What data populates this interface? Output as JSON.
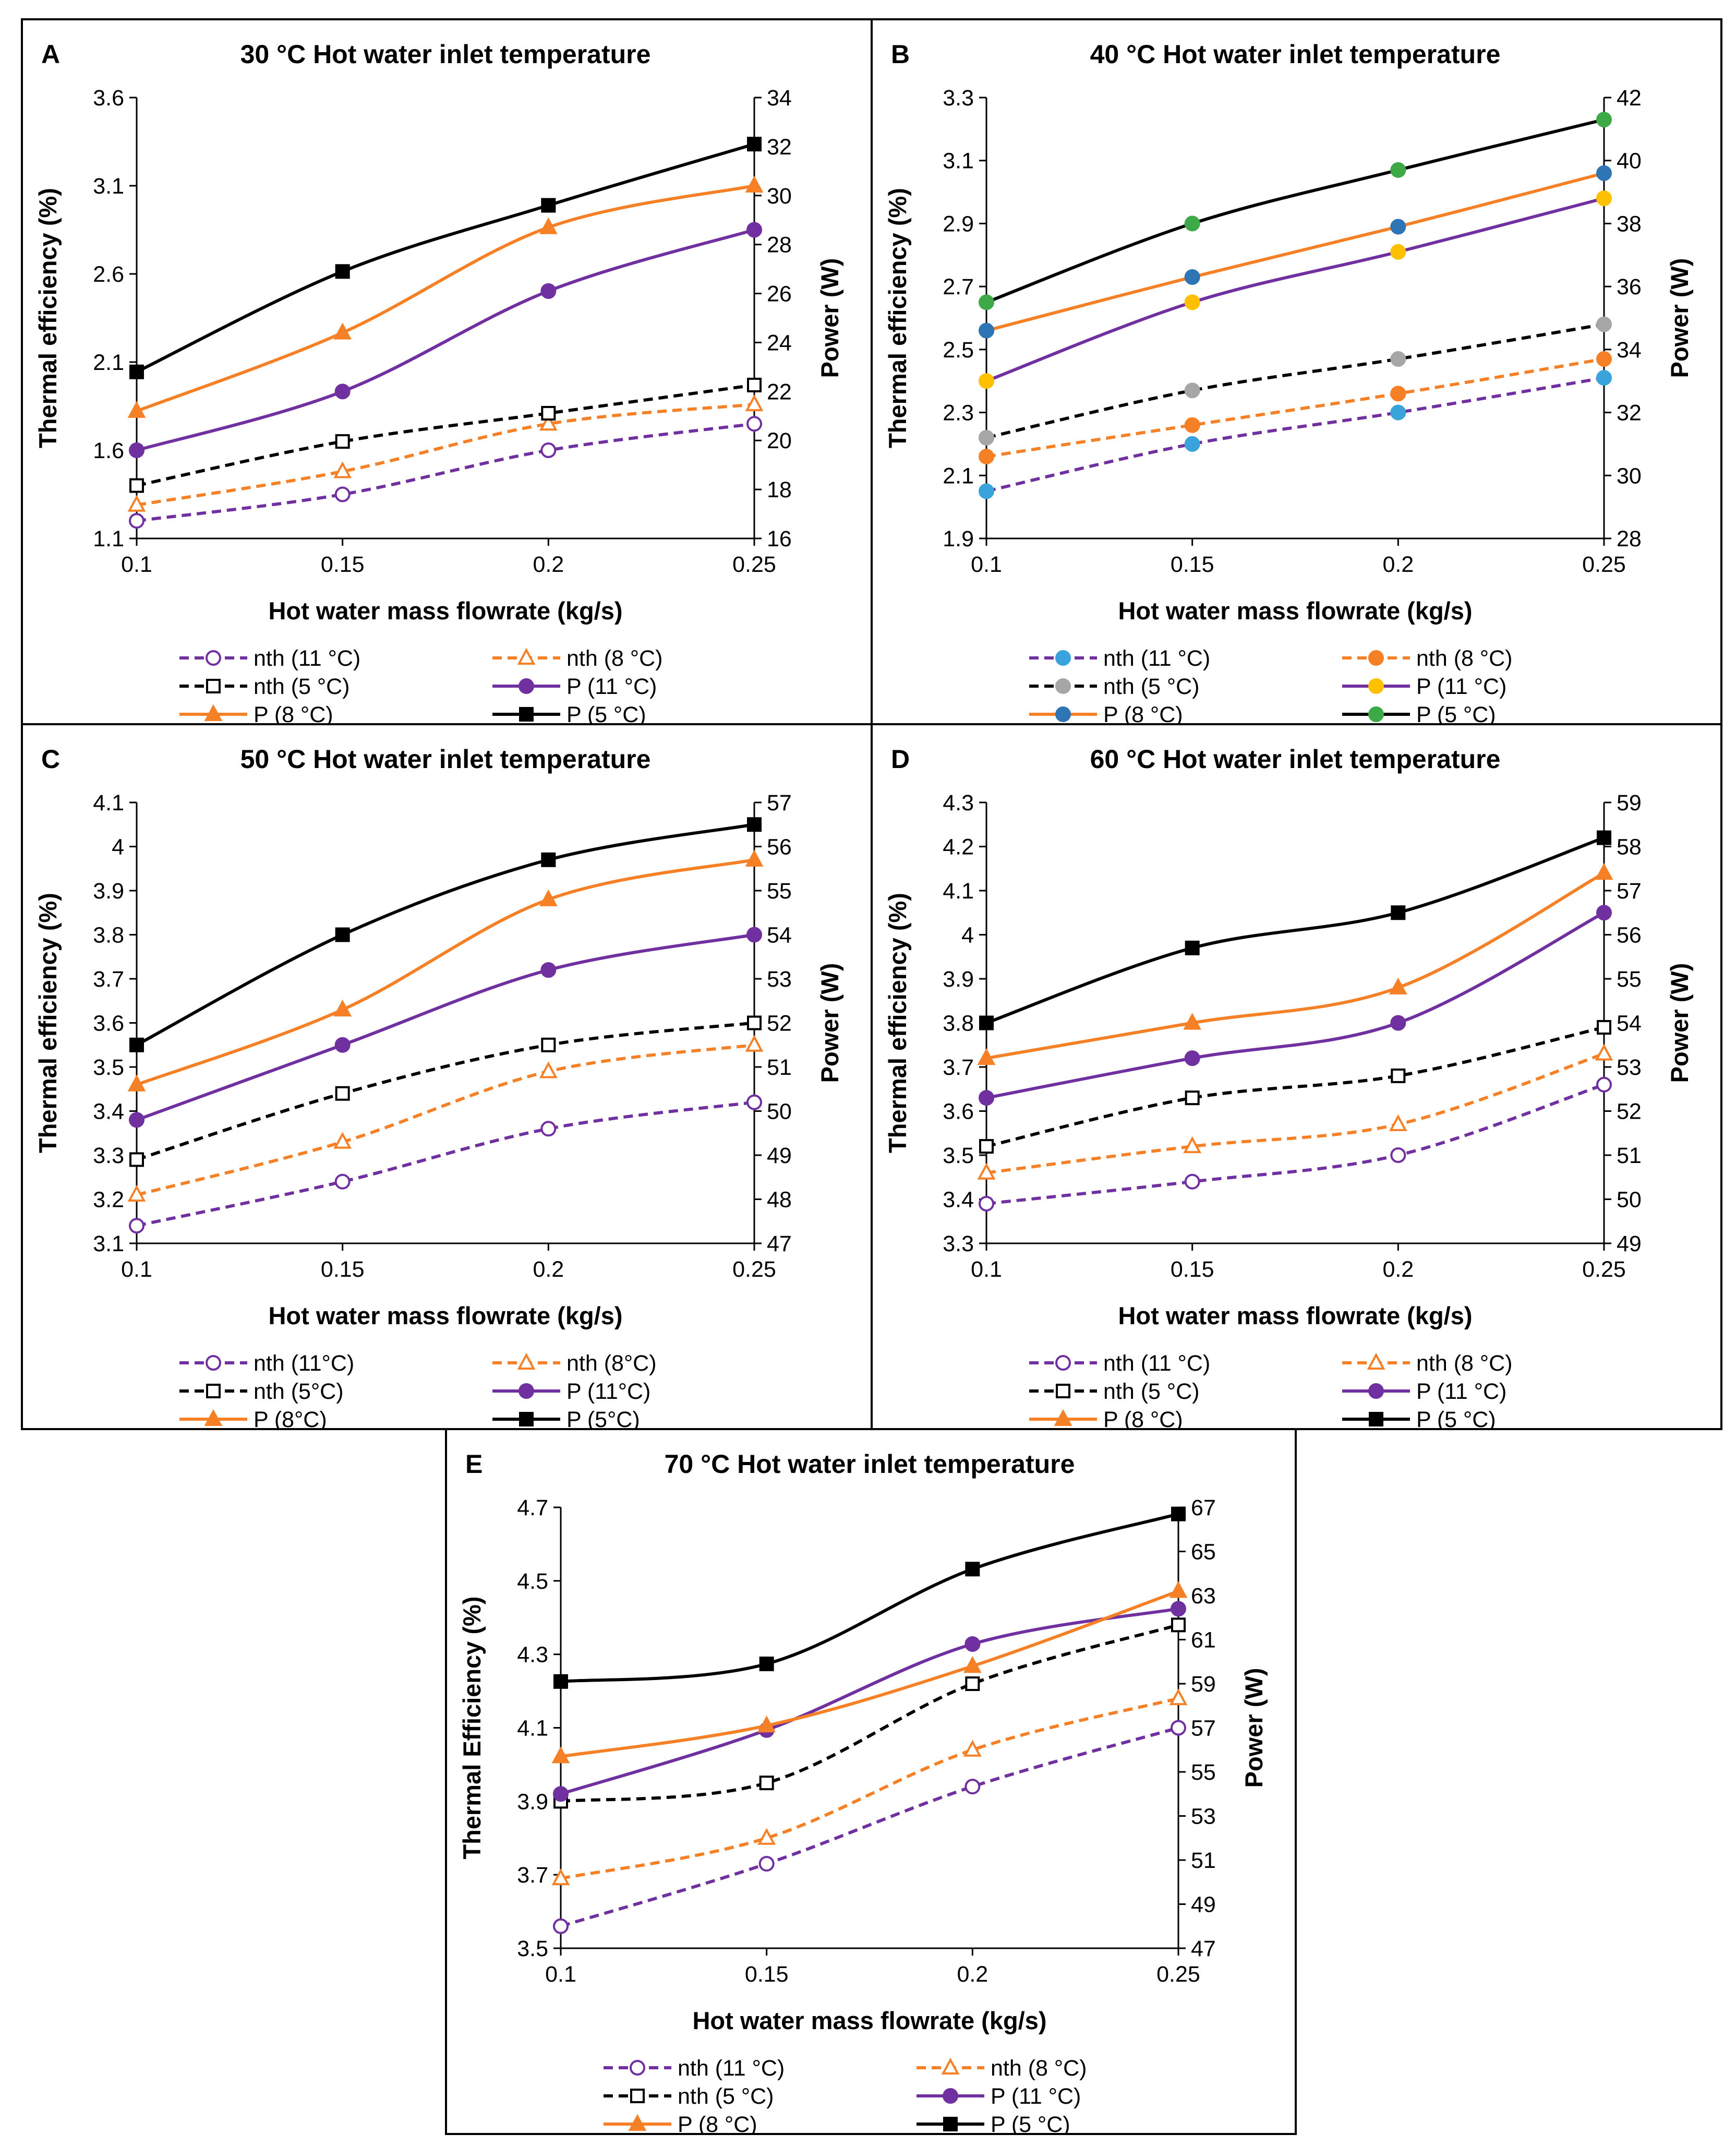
{
  "chart_data": [
    {
      "panel_letter": "A",
      "type": "line",
      "title": "30 °C Hot water inlet temperature",
      "xlabel": "Hot water mass flowrate (kg/s)",
      "ylabel": "Thermal efficiency (%)",
      "y2label": "Power (W)",
      "categories": [
        "0.1",
        "0.15",
        "0.2",
        "0.25"
      ],
      "ylim": [
        1.1,
        3.6
      ],
      "yticks": [
        "1.1",
        "1.6",
        "2.1",
        "2.6",
        "3.1",
        "3.6"
      ],
      "y2lim": [
        16,
        34
      ],
      "y2ticks": [
        "16",
        "18",
        "20",
        "22",
        "24",
        "26",
        "28",
        "30",
        "32",
        "34"
      ],
      "legend_position": "bottom",
      "series": [
        {
          "name": "nth (11 °C)",
          "axis": "left",
          "color": "#7030A0",
          "dash": true,
          "marker": "circle",
          "filled": false,
          "values": [
            1.2,
            1.35,
            1.6,
            1.75
          ]
        },
        {
          "name": "nth (8 °C)",
          "axis": "left",
          "color": "#F58025",
          "dash": true,
          "marker": "triangle",
          "filled": false,
          "values": [
            1.29,
            1.48,
            1.75,
            1.86
          ]
        },
        {
          "name": "nth (5 °C)",
          "axis": "left",
          "color": "#000000",
          "dash": true,
          "marker": "square",
          "filled": false,
          "values": [
            1.4,
            1.65,
            1.81,
            1.97
          ]
        },
        {
          "name": "P (11 °C)",
          "axis": "right",
          "color": "#7030A0",
          "dash": false,
          "marker": "circle",
          "filled": true,
          "values": [
            19.6,
            22.0,
            26.1,
            28.6
          ]
        },
        {
          "name": "P (8 °C)",
          "axis": "right",
          "color": "#F58025",
          "dash": false,
          "marker": "triangle",
          "filled": true,
          "values": [
            21.2,
            24.4,
            28.7,
            30.4
          ]
        },
        {
          "name": "P (5 °C)",
          "axis": "right",
          "color": "#000000",
          "dash": false,
          "marker": "square",
          "filled": true,
          "values": [
            22.8,
            26.9,
            29.6,
            32.1
          ]
        }
      ]
    },
    {
      "panel_letter": "B",
      "type": "line",
      "title": "40 °C Hot water inlet temperature",
      "xlabel": "Hot water mass flowrate (kg/s)",
      "ylabel": "Thermal efficiency (%)",
      "y2label": "Power (W)",
      "categories": [
        "0.1",
        "0.15",
        "0.2",
        "0.25"
      ],
      "ylim": [
        1.9,
        3.3
      ],
      "yticks": [
        "1.9",
        "2.1",
        "2.3",
        "2.5",
        "2.7",
        "2.9",
        "3.1",
        "3.3"
      ],
      "y2lim": [
        28,
        42
      ],
      "y2ticks": [
        "28",
        "30",
        "32",
        "34",
        "36",
        "38",
        "40",
        "42"
      ],
      "legend_position": "bottom",
      "series": [
        {
          "name": "nth (11 °C)",
          "axis": "left",
          "color": "#3AA3DB",
          "line_color": "#7030A0",
          "dash": true,
          "marker": "circle",
          "filled": true,
          "values": [
            2.05,
            2.2,
            2.3,
            2.41
          ]
        },
        {
          "name": "nth (8 °C)",
          "axis": "left",
          "color": "#F58025",
          "line_color": "#F58025",
          "dash": true,
          "marker": "circle",
          "filled": true,
          "values": [
            2.16,
            2.26,
            2.36,
            2.47
          ]
        },
        {
          "name": "nth (5 °C)",
          "axis": "left",
          "color": "#A6A6A6",
          "line_color": "#000000",
          "dash": true,
          "marker": "circle",
          "filled": true,
          "values": [
            2.22,
            2.37,
            2.47,
            2.58
          ]
        },
        {
          "name": "P (11 °C)",
          "axis": "right",
          "color": "#FFC000",
          "line_color": "#7030A0",
          "dash": false,
          "marker": "circle",
          "filled": true,
          "values": [
            33.0,
            35.5,
            37.1,
            38.8
          ]
        },
        {
          "name": "P (8 °C)",
          "axis": "right",
          "color": "#2E75B6",
          "line_color": "#F58025",
          "dash": false,
          "marker": "circle",
          "filled": true,
          "values": [
            34.6,
            36.3,
            37.9,
            39.6
          ]
        },
        {
          "name": "P (5 °C)",
          "axis": "right",
          "color": "#3DAA47",
          "line_color": "#000000",
          "dash": false,
          "marker": "circle",
          "filled": true,
          "values": [
            35.5,
            38.0,
            39.7,
            41.3
          ]
        }
      ]
    },
    {
      "panel_letter": "C",
      "type": "line",
      "title": "50 °C Hot water inlet temperature",
      "xlabel": "Hot water mass flowrate (kg/s)",
      "ylabel": "Thermal efficiency (%)",
      "y2label": "Power (W)",
      "categories": [
        "0.1",
        "0.15",
        "0.2",
        "0.25"
      ],
      "ylim": [
        3.1,
        4.1
      ],
      "yticks": [
        "3.1",
        "3.2",
        "3.3",
        "3.4",
        "3.5",
        "3.6",
        "3.7",
        "3.8",
        "3.9",
        "4",
        "4.1"
      ],
      "y2lim": [
        47,
        57
      ],
      "y2ticks": [
        "47",
        "48",
        "49",
        "50",
        "51",
        "52",
        "53",
        "54",
        "55",
        "56",
        "57"
      ],
      "legend_position": "bottom",
      "series": [
        {
          "name": "nth (11°C)",
          "axis": "left",
          "color": "#7030A0",
          "dash": true,
          "marker": "circle",
          "filled": false,
          "values": [
            3.14,
            3.24,
            3.36,
            3.42
          ]
        },
        {
          "name": "nth (8°C)",
          "axis": "left",
          "color": "#F58025",
          "dash": true,
          "marker": "triangle",
          "filled": false,
          "values": [
            3.21,
            3.33,
            3.49,
            3.55
          ]
        },
        {
          "name": "nth (5°C)",
          "axis": "left",
          "color": "#000000",
          "dash": true,
          "marker": "square",
          "filled": false,
          "values": [
            3.29,
            3.44,
            3.55,
            3.6
          ]
        },
        {
          "name": "P (11°C)",
          "axis": "right",
          "color": "#7030A0",
          "dash": false,
          "marker": "circle",
          "filled": true,
          "values": [
            49.8,
            51.5,
            53.2,
            54.0
          ]
        },
        {
          "name": "P (8°C)",
          "axis": "right",
          "color": "#F58025",
          "dash": false,
          "marker": "triangle",
          "filled": true,
          "values": [
            50.6,
            52.3,
            54.8,
            55.7
          ]
        },
        {
          "name": "P (5°C)",
          "axis": "right",
          "color": "#000000",
          "dash": false,
          "marker": "square",
          "filled": true,
          "values": [
            51.5,
            54.0,
            55.7,
            56.5
          ]
        }
      ]
    },
    {
      "panel_letter": "D",
      "type": "line",
      "title": "60 °C Hot water inlet temperature",
      "xlabel": "Hot water mass flowrate (kg/s)",
      "ylabel": "Thermal efficiency (%)",
      "y2label": "Power (W)",
      "categories": [
        "0.1",
        "0.15",
        "0.2",
        "0.25"
      ],
      "ylim": [
        3.3,
        4.3
      ],
      "yticks": [
        "3.3",
        "3.4",
        "3.5",
        "3.6",
        "3.7",
        "3.8",
        "3.9",
        "4",
        "4.1",
        "4.2",
        "4.3"
      ],
      "y2lim": [
        49,
        59
      ],
      "y2ticks": [
        "49",
        "50",
        "51",
        "52",
        "53",
        "54",
        "55",
        "56",
        "57",
        "58",
        "59"
      ],
      "legend_position": "bottom",
      "series": [
        {
          "name": "nth (11 °C)",
          "axis": "left",
          "color": "#7030A0",
          "dash": true,
          "marker": "circle",
          "filled": false,
          "values": [
            3.39,
            3.44,
            3.5,
            3.66
          ]
        },
        {
          "name": "nth (8 °C)",
          "axis": "left",
          "color": "#F58025",
          "dash": true,
          "marker": "triangle",
          "filled": false,
          "values": [
            3.46,
            3.52,
            3.57,
            3.73
          ]
        },
        {
          "name": "nth (5 °C)",
          "axis": "left",
          "color": "#000000",
          "dash": true,
          "marker": "square",
          "filled": false,
          "values": [
            3.52,
            3.63,
            3.68,
            3.79
          ]
        },
        {
          "name": "P (11 °C)",
          "axis": "right",
          "color": "#7030A0",
          "dash": false,
          "marker": "circle",
          "filled": true,
          "values": [
            52.3,
            53.2,
            54.0,
            56.5
          ]
        },
        {
          "name": "P (8 °C)",
          "axis": "right",
          "color": "#F58025",
          "dash": false,
          "marker": "triangle",
          "filled": true,
          "values": [
            53.2,
            54.0,
            54.8,
            57.4
          ]
        },
        {
          "name": "P (5 °C)",
          "axis": "right",
          "color": "#000000",
          "dash": false,
          "marker": "square",
          "filled": true,
          "values": [
            54.0,
            55.7,
            56.5,
            58.2
          ]
        }
      ]
    },
    {
      "panel_letter": "E",
      "type": "line",
      "title": "70 °C Hot water inlet temperature",
      "xlabel": "Hot water mass flowrate (kg/s)",
      "ylabel": "Thermal Efficiency (%)",
      "y2label": "Power (W)",
      "categories": [
        "0.1",
        "0.15",
        "0.2",
        "0.25"
      ],
      "ylim": [
        3.5,
        4.7
      ],
      "yticks": [
        "3.5",
        "3.7",
        "3.9",
        "4.1",
        "4.3",
        "4.5",
        "4.7"
      ],
      "y2lim": [
        47,
        67
      ],
      "y2ticks": [
        "47",
        "49",
        "51",
        "53",
        "55",
        "57",
        "59",
        "61",
        "63",
        "65",
        "67"
      ],
      "legend_position": "bottom",
      "series": [
        {
          "name": "nth (11 °C)",
          "axis": "left",
          "color": "#7030A0",
          "dash": true,
          "marker": "circle",
          "filled": false,
          "values": [
            3.56,
            3.73,
            3.94,
            4.1
          ]
        },
        {
          "name": "nth (8 °C)",
          "axis": "left",
          "color": "#F58025",
          "dash": true,
          "marker": "triangle",
          "filled": false,
          "values": [
            3.69,
            3.8,
            4.04,
            4.18
          ]
        },
        {
          "name": "nth (5 °C)",
          "axis": "left",
          "color": "#000000",
          "dash": true,
          "marker": "square",
          "filled": false,
          "values": [
            3.9,
            3.95,
            4.22,
            4.38
          ]
        },
        {
          "name": "P (11 °C)",
          "axis": "right",
          "color": "#7030A0",
          "dash": false,
          "marker": "circle",
          "filled": true,
          "values": [
            54.0,
            56.9,
            60.8,
            62.4
          ]
        },
        {
          "name": "P (8 °C)",
          "axis": "right",
          "color": "#F58025",
          "dash": false,
          "marker": "triangle",
          "filled": true,
          "values": [
            55.7,
            57.1,
            59.8,
            63.2
          ]
        },
        {
          "name": "P (5 °C)",
          "axis": "right",
          "color": "#000000",
          "dash": false,
          "marker": "square",
          "filled": true,
          "values": [
            59.1,
            59.9,
            64.2,
            66.7
          ]
        }
      ]
    }
  ]
}
